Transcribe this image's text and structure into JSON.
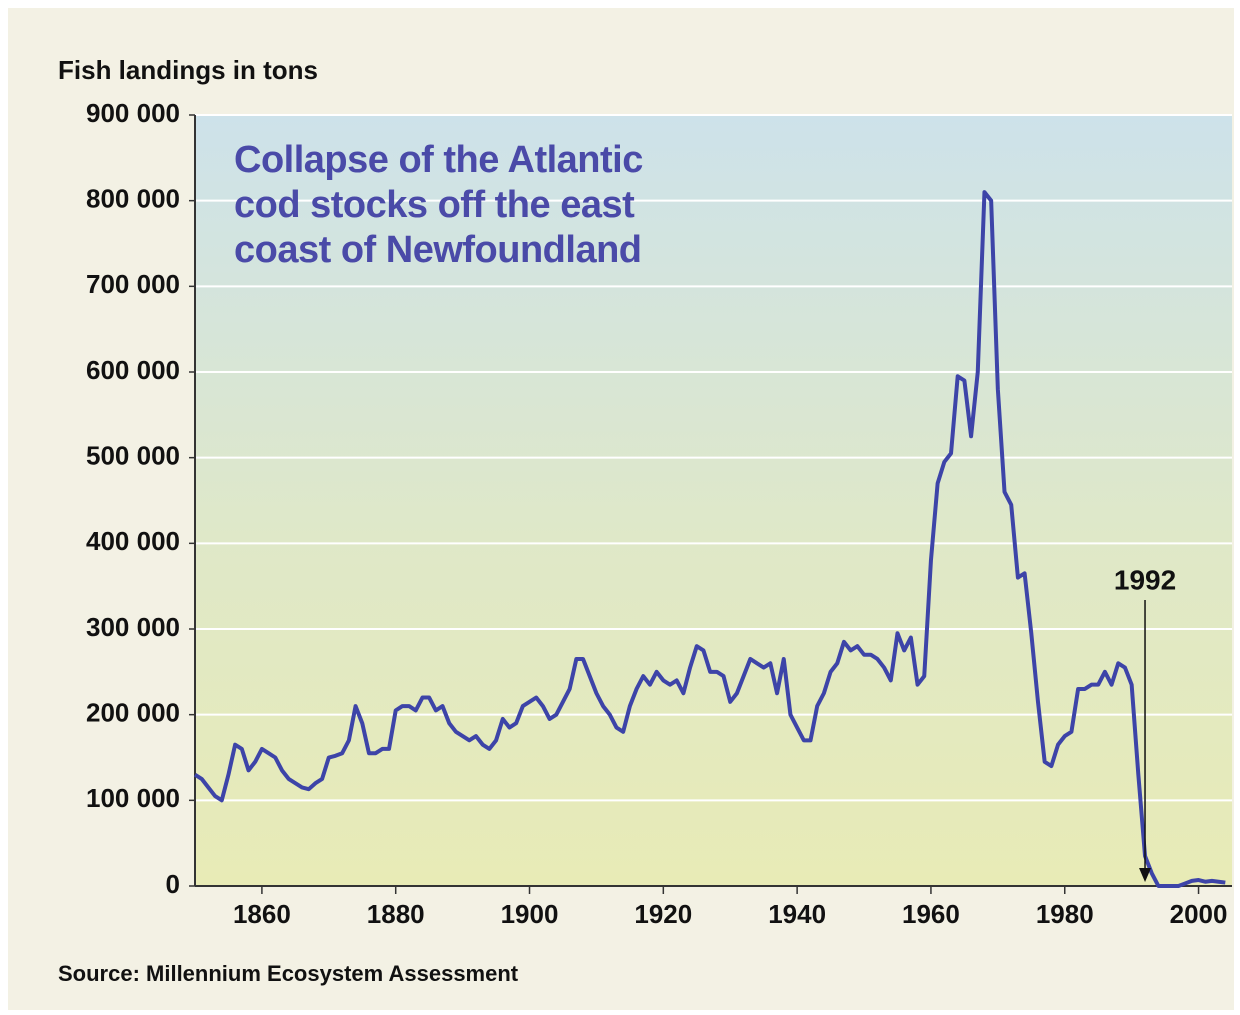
{
  "chart_data": {
    "type": "line",
    "title": "Collapse of the Atlantic cod stocks off the east coast of Newfoundland",
    "y_label": "Fish landings in tons",
    "source": "Source: Millennium Ecosystem Assessment",
    "annotation": {
      "label": "1992",
      "x": 1992
    },
    "xlim": [
      1850,
      2005
    ],
    "xticks": [
      1860,
      1880,
      1900,
      1920,
      1940,
      1960,
      1980,
      2000
    ],
    "ylim": [
      0,
      900000
    ],
    "yticks": [
      0,
      {
        "value": 100000,
        "label": "100 000"
      },
      {
        "value": 200000,
        "label": "200 000"
      },
      {
        "value": 300000,
        "label": "300 000"
      },
      {
        "value": 400000,
        "label": "400 000"
      },
      {
        "value": 500000,
        "label": "500 000"
      },
      {
        "value": 600000,
        "label": "600 000"
      },
      {
        "value": 700000,
        "label": "700 000"
      },
      {
        "value": 800000,
        "label": "800 000"
      },
      {
        "value": 900000,
        "label": "900 000"
      }
    ],
    "grid": true,
    "x": [
      1850,
      1851,
      1852,
      1853,
      1854,
      1855,
      1856,
      1857,
      1858,
      1859,
      1860,
      1861,
      1862,
      1863,
      1864,
      1865,
      1866,
      1867,
      1868,
      1869,
      1870,
      1871,
      1872,
      1873,
      1874,
      1875,
      1876,
      1877,
      1878,
      1879,
      1880,
      1881,
      1882,
      1883,
      1884,
      1885,
      1886,
      1887,
      1888,
      1889,
      1890,
      1891,
      1892,
      1893,
      1894,
      1895,
      1896,
      1897,
      1898,
      1899,
      1900,
      1901,
      1902,
      1903,
      1904,
      1905,
      1906,
      1907,
      1908,
      1909,
      1910,
      1911,
      1912,
      1913,
      1914,
      1915,
      1916,
      1917,
      1918,
      1919,
      1920,
      1921,
      1922,
      1923,
      1924,
      1925,
      1926,
      1927,
      1928,
      1929,
      1930,
      1931,
      1932,
      1933,
      1934,
      1935,
      1936,
      1937,
      1938,
      1939,
      1940,
      1941,
      1942,
      1943,
      1944,
      1945,
      1946,
      1947,
      1948,
      1949,
      1950,
      1951,
      1952,
      1953,
      1954,
      1955,
      1956,
      1957,
      1958,
      1959,
      1960,
      1961,
      1962,
      1963,
      1964,
      1965,
      1966,
      1967,
      1968,
      1969,
      1970,
      1971,
      1972,
      1973,
      1974,
      1975,
      1976,
      1977,
      1978,
      1979,
      1980,
      1981,
      1982,
      1983,
      1984,
      1985,
      1986,
      1987,
      1988,
      1989,
      1990,
      1991,
      1992,
      1993,
      1994,
      1995,
      1996,
      1997,
      1998,
      1999,
      2000,
      2001,
      2002,
      2003,
      2004
    ],
    "series": [
      {
        "color": "#3d44a8",
        "values": [
          130000,
          125000,
          115000,
          105000,
          100000,
          130000,
          165000,
          160000,
          135000,
          145000,
          160000,
          155000,
          150000,
          135000,
          125000,
          120000,
          115000,
          113000,
          120000,
          125000,
          150000,
          152000,
          155000,
          170000,
          210000,
          190000,
          155000,
          155000,
          160000,
          160000,
          205000,
          210000,
          210000,
          205000,
          220000,
          220000,
          205000,
          210000,
          190000,
          180000,
          175000,
          170000,
          175000,
          165000,
          160000,
          170000,
          195000,
          185000,
          190000,
          210000,
          215000,
          220000,
          210000,
          195000,
          200000,
          215000,
          230000,
          265000,
          265000,
          245000,
          225000,
          210000,
          200000,
          185000,
          180000,
          210000,
          230000,
          245000,
          235000,
          250000,
          240000,
          235000,
          240000,
          225000,
          255000,
          280000,
          275000,
          250000,
          250000,
          245000,
          215000,
          225000,
          245000,
          265000,
          260000,
          255000,
          260000,
          225000,
          265000,
          200000,
          185000,
          170000,
          170000,
          210000,
          225000,
          250000,
          260000,
          285000,
          275000,
          280000,
          270000,
          270000,
          265000,
          255000,
          240000,
          295000,
          275000,
          290000,
          235000,
          245000,
          380000,
          470000,
          495000,
          505000,
          595000,
          590000,
          525000,
          600000,
          810000,
          800000,
          580000,
          460000,
          445000,
          360000,
          365000,
          295000,
          215000,
          145000,
          140000,
          165000,
          175000,
          180000,
          230000,
          230000,
          235000,
          235000,
          250000,
          235000,
          260000,
          255000,
          235000,
          130000,
          35000,
          15000,
          0,
          0,
          0,
          0,
          3000,
          6000,
          7000,
          5000,
          6000,
          5000,
          4000
        ]
      }
    ]
  }
}
